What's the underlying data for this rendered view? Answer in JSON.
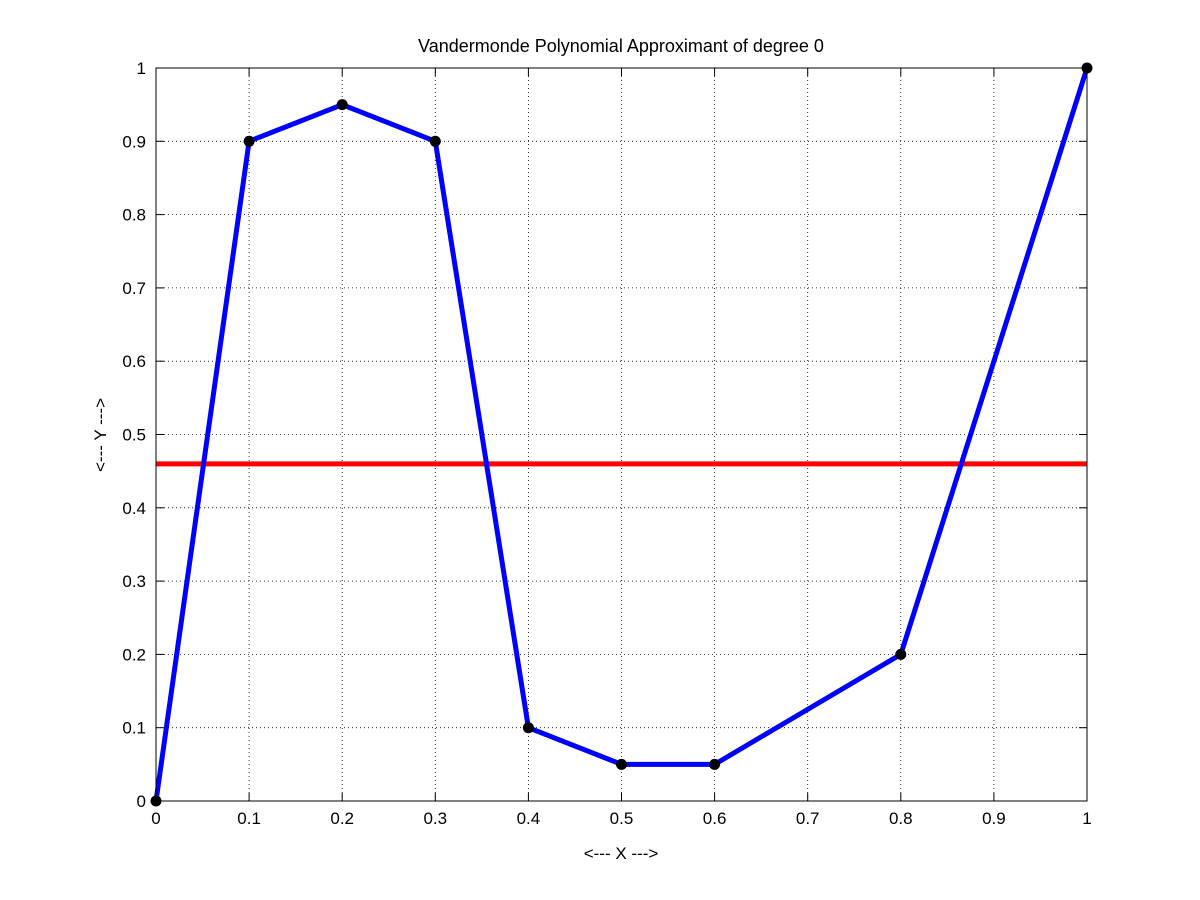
{
  "chart_data": {
    "type": "line",
    "title": "Vandermonde Polynomial Approximant of degree 0",
    "xlabel": "<--- X --->",
    "ylabel": "<--- Y --->",
    "xlim": [
      0,
      1
    ],
    "ylim": [
      0,
      1
    ],
    "grid": true,
    "xticks": [
      0,
      0.1,
      0.2,
      0.3,
      0.4,
      0.5,
      0.6,
      0.7,
      0.8,
      0.9,
      1
    ],
    "xtick_labels": [
      "0",
      "0.1",
      "0.2",
      "0.3",
      "0.4",
      "0.5",
      "0.6",
      "0.7",
      "0.8",
      "0.9",
      "1"
    ],
    "yticks": [
      0,
      0.1,
      0.2,
      0.3,
      0.4,
      0.5,
      0.6,
      0.7,
      0.8,
      0.9,
      1
    ],
    "ytick_labels": [
      "0",
      "0.1",
      "0.2",
      "0.3",
      "0.4",
      "0.5",
      "0.6",
      "0.7",
      "0.8",
      "0.9",
      "1"
    ],
    "series": [
      {
        "kind": "data-points",
        "color": "#0000ff",
        "marker_color": "#000000",
        "x": [
          0,
          0.1,
          0.2,
          0.3,
          0.4,
          0.5,
          0.6,
          0.8,
          1
        ],
        "y": [
          0,
          0.9,
          0.95,
          0.9,
          0.1,
          0.05,
          0.05,
          0.2,
          1
        ]
      },
      {
        "kind": "approximant",
        "color": "#ff0000",
        "x": [
          0,
          1
        ],
        "y": [
          0.46,
          0.46
        ]
      }
    ]
  }
}
